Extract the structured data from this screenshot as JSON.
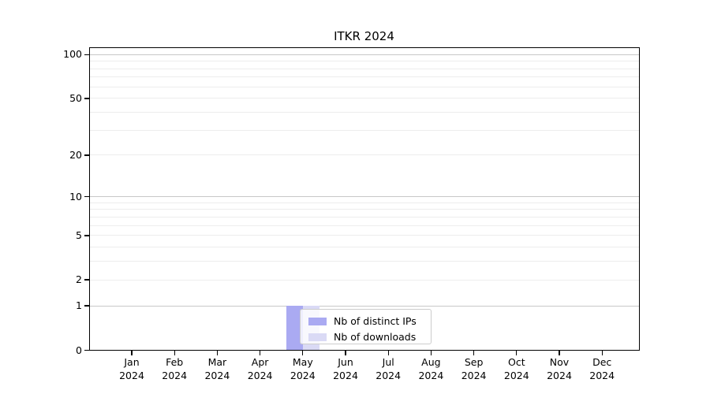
{
  "chart_data": {
    "type": "bar",
    "title": "ITKR 2024",
    "x_year": "2024",
    "categories": [
      "Jan",
      "Feb",
      "Mar",
      "Apr",
      "May",
      "Jun",
      "Jul",
      "Aug",
      "Sep",
      "Oct",
      "Nov",
      "Dec"
    ],
    "series": [
      {
        "name": "Nb of distinct IPs",
        "color": "#aaaaf2",
        "values": [
          0,
          0,
          0,
          0,
          1,
          0,
          0,
          0,
          0,
          0,
          0,
          0
        ]
      },
      {
        "name": "Nb of downloads",
        "color": "#dadaf5",
        "values": [
          0,
          0,
          0,
          0,
          1,
          0,
          0,
          0,
          0,
          0,
          0,
          0
        ]
      }
    ],
    "yscale": "log1p",
    "ylim": [
      0,
      113
    ],
    "ytick_values": [
      100,
      50,
      20,
      10,
      5,
      2,
      1,
      0
    ],
    "ytick_labels": [
      "100",
      "50",
      "20",
      "10",
      "5",
      "2",
      "1",
      "0"
    ],
    "grid": {
      "on": true,
      "minor_values": [
        2,
        3,
        4,
        6,
        7,
        8,
        9,
        20,
        30,
        40,
        60,
        70,
        80,
        90
      ],
      "labeled_minor_values": [
        5,
        50
      ],
      "major_values": [
        1,
        10,
        100
      ],
      "minor_color": "#ededed",
      "major_color": "#c8c8c8"
    },
    "legend": {
      "position": "lower-center-inside",
      "entries": [
        "Nb of distinct IPs",
        "Nb of downloads"
      ]
    },
    "axis_color": "#000000",
    "background_color": "#ffffff"
  }
}
